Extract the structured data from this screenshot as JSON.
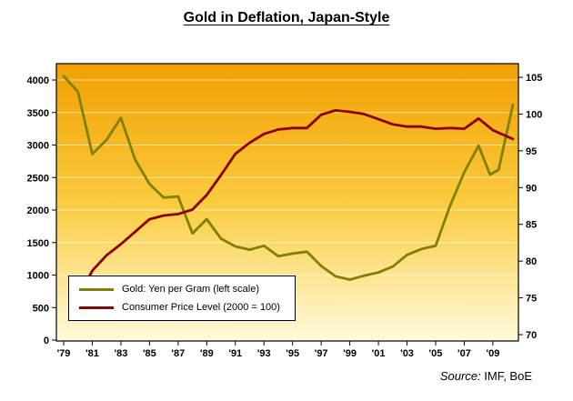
{
  "source": {
    "prefix": "Source:",
    "text": "IMF, BoE"
  },
  "colors": {
    "gold_line": "#808000",
    "cpi_line": "#8B0000",
    "plot_bg_top": "#F1A002",
    "plot_bg_mid": "#FACB3E",
    "plot_bg_bottom": "#FFFBDC",
    "grid": "rgba(255,255,255,0.55)",
    "axis": "#000000"
  },
  "legend": [
    {
      "id": "gold",
      "label": "Gold: Yen per Gram (left scale)",
      "color": "#808000"
    },
    {
      "id": "cpi",
      "label": "Consumer Price Level (2000 = 100)",
      "color": "#8B0000"
    }
  ],
  "chart_data": {
    "type": "line",
    "title": "Gold in Deflation, Japan-Style",
    "grid": true,
    "legend_position": "inside-bottom-left",
    "x_axis": {
      "tick_labels": [
        "'79",
        "'81",
        "'83",
        "'85",
        "'87",
        "'89",
        "'91",
        "'93",
        "'95",
        "'97",
        "'99",
        "'01",
        "'03",
        "'05",
        "'07",
        "'09"
      ],
      "tick_years": [
        1979,
        1981,
        1983,
        1985,
        1987,
        1989,
        1991,
        1993,
        1995,
        1997,
        1999,
        2001,
        2003,
        2005,
        2007,
        2009
      ],
      "range": [
        1979,
        2010.6
      ]
    },
    "left_axis": {
      "min": 0,
      "max": 4000,
      "ticks": [
        0,
        500,
        1000,
        1500,
        2000,
        2500,
        3000,
        3500,
        4000
      ]
    },
    "right_axis": {
      "min": 70,
      "max": 105,
      "ticks": [
        70,
        75,
        80,
        85,
        90,
        95,
        100,
        105
      ]
    },
    "series": [
      {
        "id": "gold",
        "name": "Gold: Yen per Gram (left scale)",
        "axis": "left",
        "color": "#808000",
        "points": [
          [
            1979,
            4060
          ],
          [
            1980,
            3820
          ],
          [
            1981,
            2860
          ],
          [
            1982,
            3080
          ],
          [
            1983,
            3420
          ],
          [
            1984,
            2770
          ],
          [
            1985,
            2400
          ],
          [
            1986,
            2190
          ],
          [
            1987,
            2210
          ],
          [
            1988,
            1640
          ],
          [
            1989,
            1860
          ],
          [
            1990,
            1560
          ],
          [
            1991,
            1440
          ],
          [
            1992,
            1390
          ],
          [
            1993,
            1450
          ],
          [
            1994,
            1290
          ],
          [
            1995,
            1330
          ],
          [
            1996,
            1360
          ],
          [
            1997,
            1140
          ],
          [
            1998,
            980
          ],
          [
            1999,
            930
          ],
          [
            2000,
            990
          ],
          [
            2001,
            1040
          ],
          [
            2002,
            1130
          ],
          [
            2003,
            1310
          ],
          [
            2004,
            1400
          ],
          [
            2005,
            1450
          ],
          [
            2006,
            2060
          ],
          [
            2007,
            2580
          ],
          [
            2008,
            2990
          ],
          [
            2008.8,
            2545
          ],
          [
            2009.4,
            2620
          ],
          [
            2010.4,
            3620
          ]
        ]
      },
      {
        "id": "cpi",
        "name": "Consumer Price Level (2000 = 100)",
        "axis": "right",
        "color": "#8B0000",
        "points": [
          [
            1980,
            75.0
          ],
          [
            1981,
            78.7
          ],
          [
            1982,
            80.8
          ],
          [
            1983,
            82.3
          ],
          [
            1984,
            84.0
          ],
          [
            1985,
            85.7
          ],
          [
            1986,
            86.2
          ],
          [
            1987,
            86.4
          ],
          [
            1988,
            87.0
          ],
          [
            1989,
            89.0
          ],
          [
            1990,
            91.7
          ],
          [
            1991,
            94.6
          ],
          [
            1992,
            96.1
          ],
          [
            1993,
            97.3
          ],
          [
            1994,
            97.9
          ],
          [
            1995,
            98.1
          ],
          [
            1996,
            98.1
          ],
          [
            1997,
            99.9
          ],
          [
            1998,
            100.5
          ],
          [
            1999,
            100.3
          ],
          [
            2000,
            100.0
          ],
          [
            2001,
            99.3
          ],
          [
            2002,
            98.6
          ],
          [
            2003,
            98.3
          ],
          [
            2004,
            98.3
          ],
          [
            2005,
            98.0
          ],
          [
            2006,
            98.1
          ],
          [
            2007,
            98.0
          ],
          [
            2008,
            99.4
          ],
          [
            2009,
            97.8
          ],
          [
            2010.4,
            96.6
          ]
        ]
      }
    ]
  }
}
